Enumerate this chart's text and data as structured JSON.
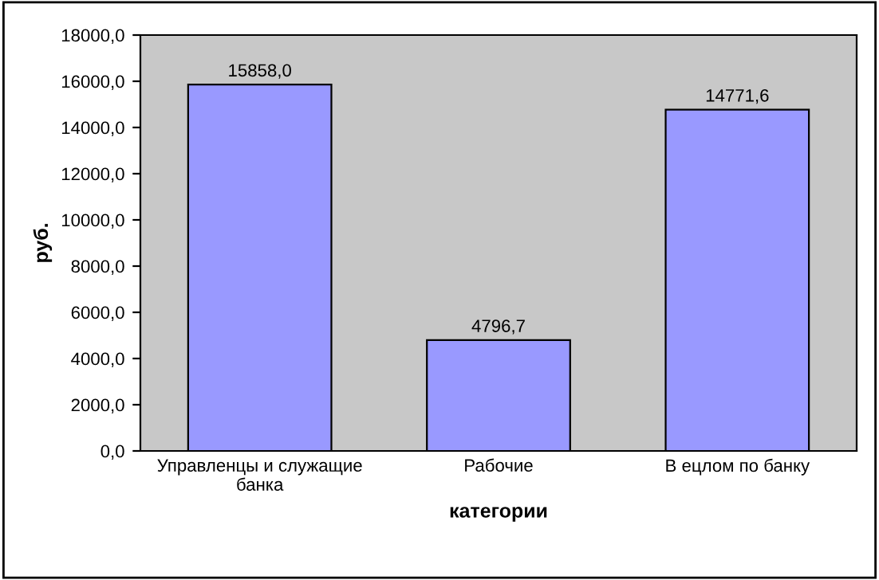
{
  "chart_data": {
    "type": "bar",
    "xlabel": "категории",
    "ylabel": "руб.",
    "categories": [
      "Управленцы и служащие\nбанка",
      "Рабочие",
      "В ецлом по банку"
    ],
    "values": [
      15858.0,
      4796.7,
      14771.6
    ],
    "value_labels": [
      "15858,0",
      "4796,7",
      "14771,6"
    ],
    "color": "#9999ff",
    "ylim": [
      0,
      18000
    ],
    "yticks": [
      {
        "value": 0,
        "label": "0,0"
      },
      {
        "value": 2000,
        "label": "2000,0"
      },
      {
        "value": 4000,
        "label": "4000,0"
      },
      {
        "value": 6000,
        "label": "6000,0"
      },
      {
        "value": 8000,
        "label": "8000,0"
      },
      {
        "value": 10000,
        "label": "10000,0"
      },
      {
        "value": 12000,
        "label": "12000,0"
      },
      {
        "value": 14000,
        "label": "14000,0"
      },
      {
        "value": 16000,
        "label": "16000,0"
      },
      {
        "value": 18000,
        "label": "18000,0"
      }
    ],
    "grid": false
  }
}
